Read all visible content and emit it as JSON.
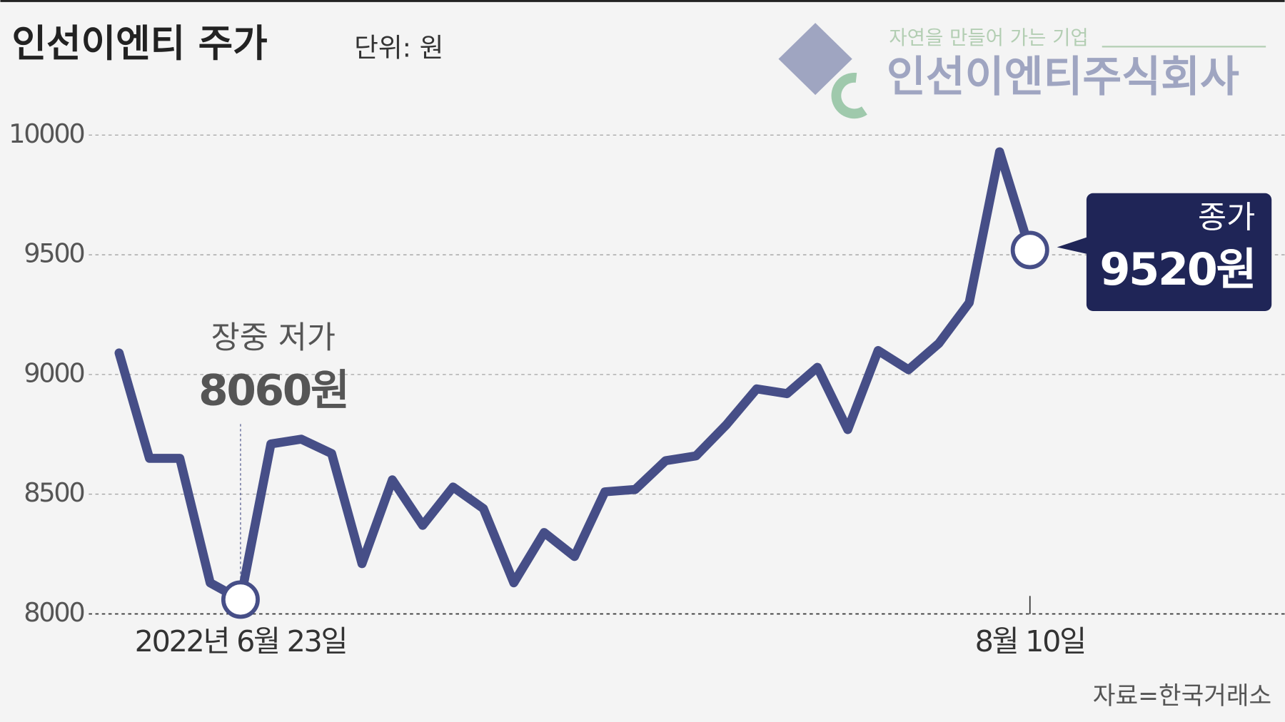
{
  "chart_data": {
    "type": "line",
    "title": "인선이엔티 주가",
    "subtitle": "단위: 원",
    "source": "자료=한국거래소",
    "logo": {
      "slogan": "자연을 만들어 가는 기업",
      "name": "인선이엔티주식회사"
    },
    "categories": [
      null,
      null,
      null,
      null,
      "2022년 6월 23일",
      null,
      null,
      null,
      null,
      null,
      null,
      null,
      null,
      null,
      null,
      null,
      null,
      null,
      null,
      null,
      null,
      null,
      null,
      null,
      null,
      null,
      null,
      null,
      null,
      null,
      "8월 10일"
    ],
    "series": [
      {
        "name": "인선이엔티",
        "color": "#464e87",
        "values": [
          9090,
          8650,
          8650,
          8130,
          8060,
          8710,
          8730,
          8670,
          8210,
          8560,
          8370,
          8530,
          8440,
          8130,
          8340,
          8240,
          8510,
          8520,
          8640,
          8660,
          8790,
          8940,
          8920,
          9030,
          8770,
          9100,
          9020,
          9130,
          9300,
          9930,
          9520
        ]
      }
    ],
    "low_label": {
      "caption": "장중 저가",
      "text": "8060원"
    },
    "close_label": {
      "caption": "종가",
      "text": "9520원"
    },
    "ylim": [
      8000,
      10000
    ],
    "yticks": [
      8000,
      8500,
      9000,
      9500,
      10000
    ],
    "grid": true,
    "box_color": "#1f2557"
  }
}
